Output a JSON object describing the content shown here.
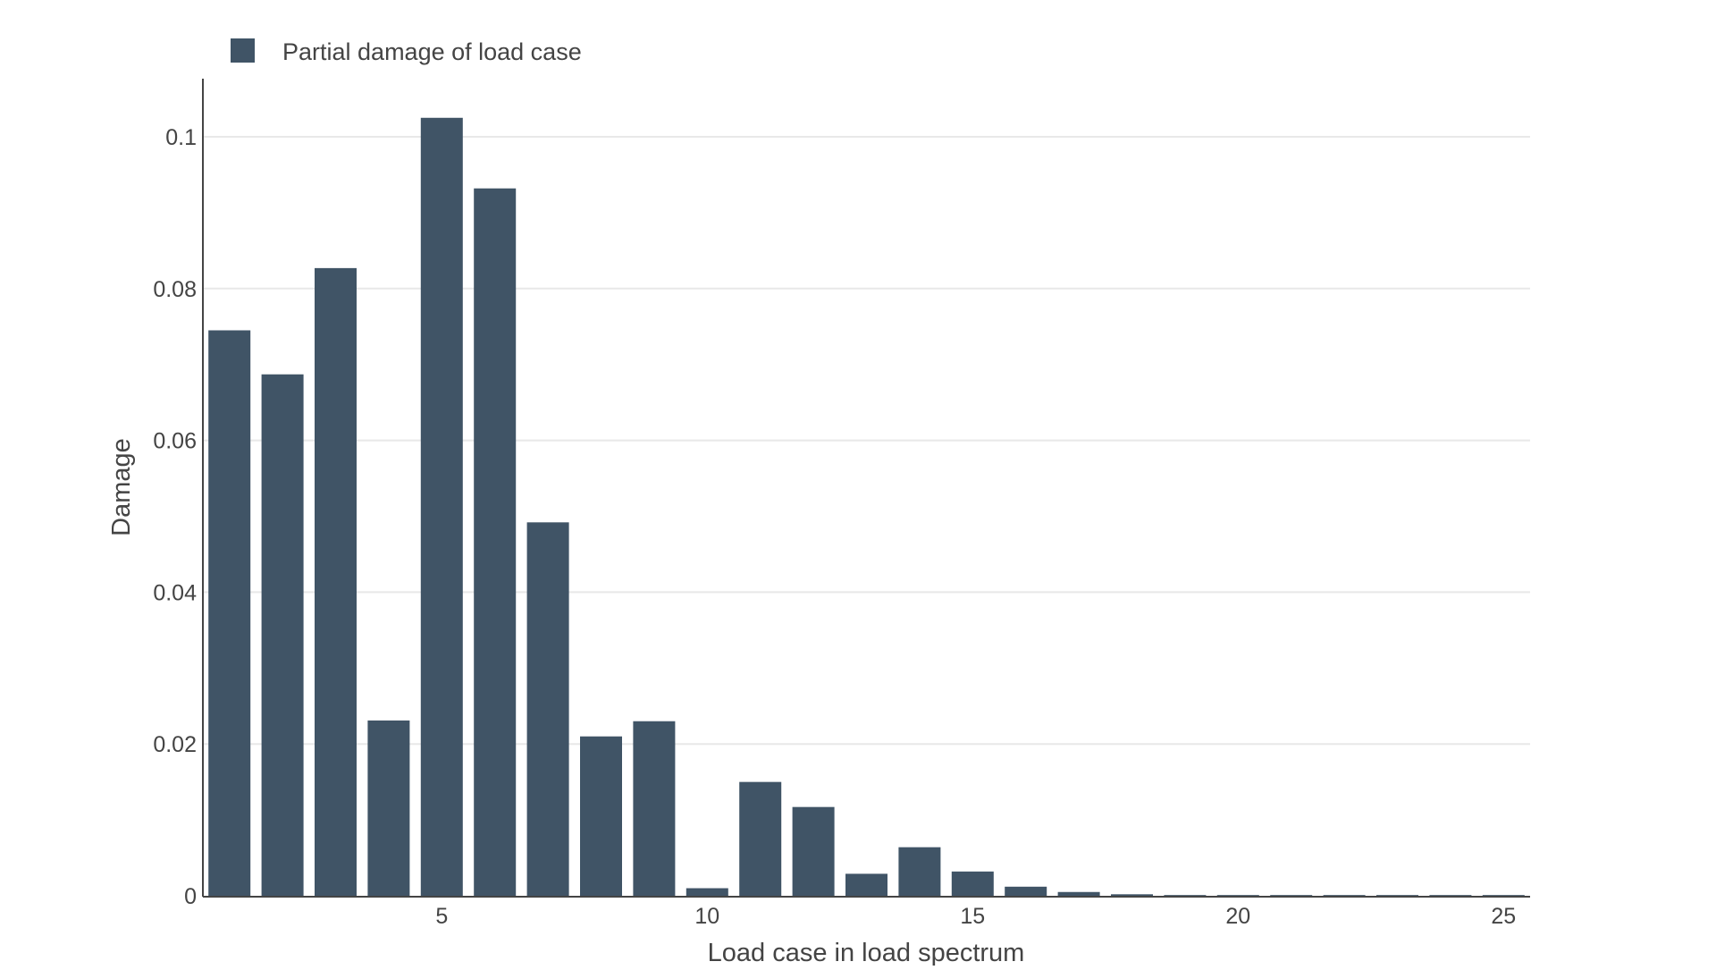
{
  "chart_data": {
    "type": "bar",
    "title": "",
    "xlabel": "Load case in load spectrum",
    "ylabel": "Damage",
    "x": [
      1,
      2,
      3,
      4,
      5,
      6,
      7,
      8,
      9,
      10,
      11,
      12,
      13,
      14,
      15,
      16,
      17,
      18,
      19,
      20,
      21,
      22,
      23,
      24,
      25
    ],
    "series": [
      {
        "name": "Partial damage of load case",
        "color": "#405466",
        "values": [
          0.0745,
          0.0687,
          0.0827,
          0.0231,
          0.1025,
          0.0932,
          0.0492,
          0.021,
          0.023,
          0.001,
          0.015,
          0.0117,
          0.0029,
          0.0064,
          0.0032,
          0.0012,
          0.0005,
          0.0002,
          0.0001,
          0.0001,
          0.0001,
          0.0001,
          0.0001,
          0.0001,
          0.0001
        ]
      }
    ],
    "xlim": [
      0.5,
      25.5
    ],
    "ylim": [
      0,
      0.108
    ],
    "xticks": [
      5,
      10,
      15,
      20,
      25
    ],
    "xtick_labels": [
      "5",
      "10",
      "15",
      "20",
      "25"
    ],
    "yticks": [
      0,
      0.02,
      0.04,
      0.06,
      0.08,
      0.1
    ],
    "ytick_labels": [
      "0",
      "0.02",
      "0.04",
      "0.06",
      "0.08",
      "0.1"
    ],
    "grid": true,
    "legend_position": "top-left",
    "colors": {
      "bar": "#405466",
      "grid": "#e8e8e8",
      "axis": "#444444"
    }
  }
}
